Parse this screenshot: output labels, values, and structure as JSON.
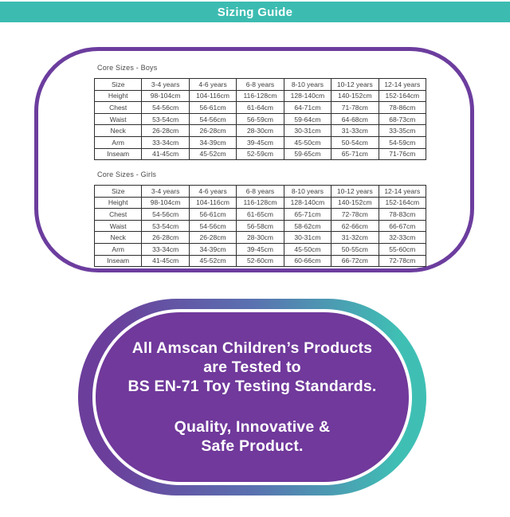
{
  "header": {
    "title": "Sizing Guide"
  },
  "colors": {
    "teal": "#3cbcb1",
    "purple": "#6c3d9e",
    "badge_fill_purple": "#70399b",
    "badge_gradient": [
      "#6b3e9b",
      "#3fbfb4"
    ],
    "table_text": "#3f3f3f"
  },
  "tables": [
    {
      "caption": "Core Sizes - Boys",
      "columns": [
        "Size",
        "3-4 years",
        "4-6 years",
        "6-8 years",
        "8-10 years",
        "10-12 years",
        "12-14 years"
      ],
      "rows": [
        [
          "Height",
          "98-104cm",
          "104-116cm",
          "116-128cm",
          "128-140cm",
          "140-152cm",
          "152-164cm"
        ],
        [
          "Chest",
          "54-56cm",
          "56-61cm",
          "61-64cm",
          "64-71cm",
          "71-78cm",
          "78-86cm"
        ],
        [
          "Waist",
          "53-54cm",
          "54-56cm",
          "56-59cm",
          "59-64cm",
          "64-68cm",
          "68-73cm"
        ],
        [
          "Neck",
          "26-28cm",
          "26-28cm",
          "28-30cm",
          "30-31cm",
          "31-33cm",
          "33-35cm"
        ],
        [
          "Arm",
          "33-34cm",
          "34-39cm",
          "39-45cm",
          "45-50cm",
          "50-54cm",
          "54-59cm"
        ],
        [
          "Inseam",
          "41-45cm",
          "45-52cm",
          "52-59cm",
          "59-65cm",
          "65-71cm",
          "71-76cm"
        ]
      ]
    },
    {
      "caption": "Core Sizes - Girls",
      "columns": [
        "Size",
        "3-4 years",
        "4-6 years",
        "6-8 years",
        "8-10 years",
        "10-12 years",
        "12-14 years"
      ],
      "rows": [
        [
          "Height",
          "98-104cm",
          "104-116cm",
          "116-128cm",
          "128-140cm",
          "140-152cm",
          "152-164cm"
        ],
        [
          "Chest",
          "54-56cm",
          "56-61cm",
          "61-65cm",
          "65-71cm",
          "72-78cm",
          "78-83cm"
        ],
        [
          "Waist",
          "53-54cm",
          "54-56cm",
          "56-58cm",
          "58-62cm",
          "62-66cm",
          "66-67cm"
        ],
        [
          "Neck",
          "26-28cm",
          "26-28cm",
          "28-30cm",
          "30-31cm",
          "31-32cm",
          "32-33cm"
        ],
        [
          "Arm",
          "33-34cm",
          "34-39cm",
          "39-45cm",
          "45-50cm",
          "50-55cm",
          "55-60cm"
        ],
        [
          "Inseam",
          "41-45cm",
          "45-52cm",
          "52-60cm",
          "60-66cm",
          "66-72cm",
          "72-78cm"
        ]
      ]
    }
  ],
  "badge": {
    "statement_lines": [
      "All Amscan Children’s Products",
      "are Tested to",
      "BS EN-71 Toy Testing Standards."
    ],
    "tagline_lines": [
      "Quality, Innovative &",
      "Safe Product."
    ]
  }
}
